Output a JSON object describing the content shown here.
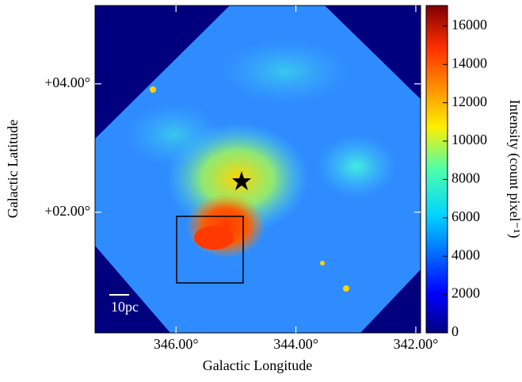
{
  "chart_data": {
    "type": "image",
    "xlabel": "Galactic Longitude",
    "ylabel": "Galactic Latitude",
    "xlim": [
      347.35,
      341.92
    ],
    "ylim": [
      0.12,
      5.22
    ],
    "xticks": [
      {
        "value": 346,
        "label": "346.00°"
      },
      {
        "value": 344,
        "label": "344.00°"
      },
      {
        "value": 342,
        "label": "342.00°"
      }
    ],
    "yticks": [
      {
        "value": 2,
        "label": "+02.00°"
      },
      {
        "value": 4,
        "label": "+04.00°"
      }
    ],
    "colorbar": {
      "label": "Intensity (count pixel⁻¹)",
      "lim": [
        0,
        17070
      ],
      "ticks": [
        0,
        2000,
        4000,
        6000,
        8000,
        10000,
        12000,
        14000,
        16000
      ]
    },
    "annotations": {
      "scale_bar": "10pc"
    }
  }
}
